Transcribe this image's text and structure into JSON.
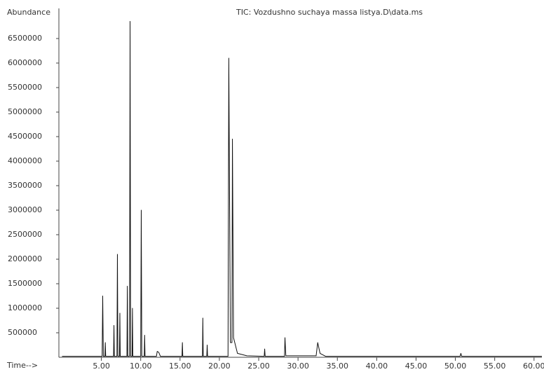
{
  "chart_data": {
    "type": "line",
    "title": "TIC: Vozdushno suchaya massa listya.D\\data.ms",
    "y_label": "Abundance",
    "x_label": "Time-->",
    "x": [
      0,
      5.1,
      5.17,
      5.25,
      5.45,
      5.5,
      5.55,
      6.55,
      6.6,
      6.65,
      6.98,
      7.04,
      7.1,
      7.3,
      7.35,
      7.4,
      8.25,
      8.3,
      8.35,
      8.58,
      8.65,
      8.72,
      8.9,
      8.95,
      9.0,
      10.0,
      10.07,
      10.14,
      10.45,
      10.5,
      10.55,
      12.0,
      12.1,
      12.3,
      12.5,
      15.25,
      15.3,
      15.35,
      17.85,
      17.9,
      17.95,
      18.4,
      18.45,
      18.5,
      21.1,
      21.2,
      21.4,
      21.6,
      21.66,
      21.8,
      22.3,
      23.5,
      25.7,
      25.76,
      25.82,
      28.28,
      28.34,
      28.45,
      32.3,
      32.5,
      32.8,
      33.5,
      50.6,
      50.7,
      50.8,
      61
    ],
    "series": [
      {
        "name": "TIC",
        "color": "#111111",
        "values": [
          20000,
          20000,
          1250000,
          20000,
          20000,
          300000,
          20000,
          20000,
          650000,
          20000,
          20000,
          2100000,
          20000,
          20000,
          900000,
          20000,
          20000,
          1450000,
          20000,
          20000,
          6850000,
          20000,
          20000,
          1000000,
          20000,
          20000,
          3000000,
          20000,
          20000,
          450000,
          20000,
          20000,
          120000,
          100000,
          20000,
          20000,
          300000,
          20000,
          20000,
          800000,
          20000,
          20000,
          250000,
          20000,
          20000,
          6100000,
          300000,
          300000,
          4450000,
          400000,
          80000,
          30000,
          20000,
          170000,
          20000,
          20000,
          400000,
          30000,
          30000,
          300000,
          80000,
          20000,
          20000,
          80000,
          20000,
          20000
        ]
      }
    ],
    "xlim": [
      -0.4,
      61
    ],
    "ylim": [
      0,
      7000000
    ],
    "xticks": [
      {
        "value": 5,
        "label": "5.00"
      },
      {
        "value": 10,
        "label": "10.00"
      },
      {
        "value": 15,
        "label": "15.00"
      },
      {
        "value": 20,
        "label": "20.00"
      },
      {
        "value": 25,
        "label": "25.00"
      },
      {
        "value": 30,
        "label": "30.00"
      },
      {
        "value": 35,
        "label": "35.00"
      },
      {
        "value": 40,
        "label": "40.00"
      },
      {
        "value": 45,
        "label": "45.00"
      },
      {
        "value": 50,
        "label": "50.00"
      },
      {
        "value": 55,
        "label": "55.00"
      },
      {
        "value": 60,
        "label": "60.00"
      }
    ],
    "yticks": [
      500000,
      1000000,
      1500000,
      2000000,
      2500000,
      3000000,
      3500000,
      4000000,
      4500000,
      5000000,
      5500000,
      6000000,
      6500000
    ]
  }
}
